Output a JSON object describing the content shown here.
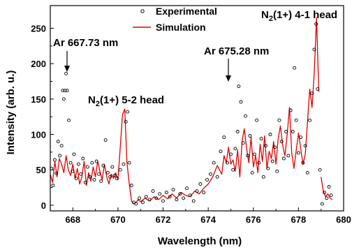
{
  "chart_data": {
    "type": "line",
    "xlabel": "Wavelength (nm)",
    "ylabel": "Intensity (arb. u.)",
    "xlim": [
      667,
      680
    ],
    "ylim": [
      -8,
      282
    ],
    "x_ticks": [
      668,
      670,
      672,
      674,
      676,
      678,
      680
    ],
    "y_ticks": [
      0,
      50,
      100,
      150,
      200,
      250
    ],
    "legend": {
      "position": "top-center"
    },
    "colors": {
      "simulation": "#e00000",
      "experimental": "#000000"
    },
    "series": [
      {
        "name": "Simulation",
        "style": "line",
        "x": [
          667.0,
          667.1,
          667.2,
          667.3,
          667.4,
          667.5,
          667.6,
          667.7,
          667.8,
          667.9,
          668.0,
          668.1,
          668.2,
          668.3,
          668.4,
          668.5,
          668.6,
          668.7,
          668.8,
          668.9,
          669.0,
          669.1,
          669.2,
          669.3,
          669.4,
          669.5,
          669.6,
          669.7,
          669.8,
          669.9,
          670.0,
          670.1,
          670.2,
          670.3,
          670.4,
          670.5,
          670.6,
          670.7,
          670.8,
          670.9,
          671.0,
          671.2,
          671.4,
          671.6,
          671.8,
          672.0,
          672.2,
          672.4,
          672.6,
          672.8,
          673.0,
          673.2,
          673.4,
          673.6,
          673.8,
          674.0,
          674.2,
          674.4,
          674.6,
          674.7,
          674.8,
          674.9,
          675.0,
          675.1,
          675.2,
          675.3,
          675.4,
          675.5,
          675.6,
          675.7,
          675.8,
          675.9,
          676.0,
          676.1,
          676.2,
          676.3,
          676.4,
          676.5,
          676.6,
          676.7,
          676.8,
          676.9,
          677.0,
          677.1,
          677.2,
          677.3,
          677.4,
          677.5,
          677.6,
          677.7,
          677.8,
          677.9,
          678.0,
          678.1,
          678.2,
          678.3,
          678.4,
          678.5,
          678.6,
          678.7,
          678.8,
          678.9,
          679.0,
          679.1,
          679.2,
          679.3,
          679.4,
          679.5
        ],
        "y": [
          44,
          32,
          62,
          40,
          66,
          58,
          46,
          70,
          50,
          42,
          58,
          38,
          52,
          30,
          40,
          62,
          28,
          46,
          34,
          54,
          40,
          62,
          48,
          36,
          58,
          40,
          30,
          44,
          38,
          46,
          36,
          82,
          128,
          136,
          60,
          30,
          6,
          2,
          4,
          8,
          5,
          10,
          6,
          12,
          8,
          14,
          9,
          16,
          10,
          18,
          14,
          12,
          20,
          16,
          24,
          30,
          40,
          56,
          44,
          70,
          60,
          82,
          58,
          64,
          48,
          78,
          40,
          90,
          108,
          80,
          60,
          96,
          54,
          70,
          46,
          86,
          62,
          98,
          52,
          76,
          66,
          90,
          58,
          94,
          112,
          84,
          70,
          100,
          138,
          74,
          52,
          78,
          102,
          80,
          58,
          72,
          118,
          164,
          138,
          188,
          265,
          160,
          40,
          20,
          12,
          16,
          10,
          8
        ],
        "gap_before_index": 102
      },
      {
        "name": "Experimental",
        "style": "scatter",
        "points": [
          [
            667.05,
            52
          ],
          [
            667.12,
            28
          ],
          [
            667.2,
            64
          ],
          [
            667.27,
            45
          ],
          [
            667.35,
            90
          ],
          [
            667.42,
            70
          ],
          [
            667.5,
            84
          ],
          [
            667.55,
            162
          ],
          [
            667.6,
            150
          ],
          [
            667.65,
            162
          ],
          [
            667.7,
            186
          ],
          [
            667.75,
            162
          ],
          [
            667.82,
            120
          ],
          [
            667.9,
            60
          ],
          [
            667.98,
            48
          ],
          [
            668.05,
            72
          ],
          [
            668.15,
            38
          ],
          [
            668.25,
            58
          ],
          [
            668.35,
            44
          ],
          [
            668.45,
            66
          ],
          [
            668.55,
            32
          ],
          [
            668.65,
            54
          ],
          [
            668.75,
            40
          ],
          [
            668.85,
            60
          ],
          [
            668.95,
            36
          ],
          [
            669.05,
            62
          ],
          [
            669.15,
            44
          ],
          [
            669.25,
            34
          ],
          [
            669.35,
            56
          ],
          [
            669.45,
            92
          ],
          [
            669.55,
            46
          ],
          [
            669.65,
            40
          ],
          [
            669.75,
            54
          ],
          [
            669.85,
            42
          ],
          [
            669.95,
            38
          ],
          [
            670.1,
            50
          ],
          [
            670.25,
            58
          ],
          [
            670.35,
            118
          ],
          [
            670.42,
            132
          ],
          [
            670.5,
            60
          ],
          [
            670.6,
            28
          ],
          [
            670.7,
            4
          ],
          [
            670.8,
            2
          ],
          [
            670.95,
            10
          ],
          [
            671.1,
            4
          ],
          [
            671.25,
            12
          ],
          [
            671.4,
            8
          ],
          [
            671.55,
            20
          ],
          [
            671.7,
            10
          ],
          [
            671.85,
            16
          ],
          [
            672.0,
            6
          ],
          [
            672.15,
            18
          ],
          [
            672.3,
            12
          ],
          [
            672.45,
            22
          ],
          [
            672.6,
            8
          ],
          [
            672.75,
            16
          ],
          [
            672.9,
            10
          ],
          [
            673.05,
            24
          ],
          [
            673.2,
            14
          ],
          [
            673.35,
            6
          ],
          [
            673.5,
            20
          ],
          [
            673.65,
            30
          ],
          [
            673.8,
            18
          ],
          [
            673.95,
            36
          ],
          [
            674.1,
            44
          ],
          [
            674.25,
            60
          ],
          [
            674.4,
            40
          ],
          [
            674.55,
            76
          ],
          [
            674.7,
            96
          ],
          [
            674.85,
            60
          ],
          [
            675.0,
            72
          ],
          [
            675.1,
            50
          ],
          [
            675.2,
            80
          ],
          [
            675.3,
            104
          ],
          [
            675.35,
            168
          ],
          [
            675.45,
            146
          ],
          [
            675.55,
            88
          ],
          [
            675.65,
            126
          ],
          [
            675.75,
            70
          ],
          [
            675.85,
            98
          ],
          [
            675.95,
            46
          ],
          [
            676.05,
            72
          ],
          [
            676.15,
            120
          ],
          [
            676.25,
            60
          ],
          [
            676.35,
            94
          ],
          [
            676.45,
            40
          ],
          [
            676.55,
            84
          ],
          [
            676.65,
            52
          ],
          [
            676.75,
            100
          ],
          [
            676.85,
            62
          ],
          [
            676.95,
            82
          ],
          [
            677.05,
            48
          ],
          [
            677.15,
            120
          ],
          [
            677.25,
            90
          ],
          [
            677.35,
            66
          ],
          [
            677.45,
            104
          ],
          [
            677.55,
            70
          ],
          [
            677.65,
            134
          ],
          [
            677.75,
            104
          ],
          [
            677.82,
            194
          ],
          [
            677.9,
            120
          ],
          [
            678.0,
            74
          ],
          [
            678.1,
            96
          ],
          [
            678.2,
            60
          ],
          [
            678.3,
            84
          ],
          [
            678.4,
            46
          ],
          [
            678.5,
            120
          ],
          [
            678.6,
            158
          ],
          [
            678.7,
            220
          ],
          [
            678.78,
            256
          ],
          [
            678.85,
            164
          ],
          [
            678.95,
            50
          ],
          [
            679.05,
            2
          ],
          [
            679.15,
            18
          ],
          [
            679.25,
            10
          ],
          [
            679.35,
            26
          ],
          [
            679.45,
            14
          ]
        ]
      }
    ],
    "annotations": [
      {
        "text": "Ar 667.73 nm",
        "x": 667.73,
        "y": 186
      },
      {
        "text": "Ar 675.28 nm",
        "x": 675.28,
        "y": 168
      },
      {
        "main": "N",
        "sub": "2",
        "suffix": "(1+) 5-2 head",
        "x": 670.5,
        "y": 136
      },
      {
        "main": "N",
        "sub": "2",
        "suffix": "(1+) 4-1 head",
        "x": 678.78,
        "y": 265
      }
    ]
  }
}
